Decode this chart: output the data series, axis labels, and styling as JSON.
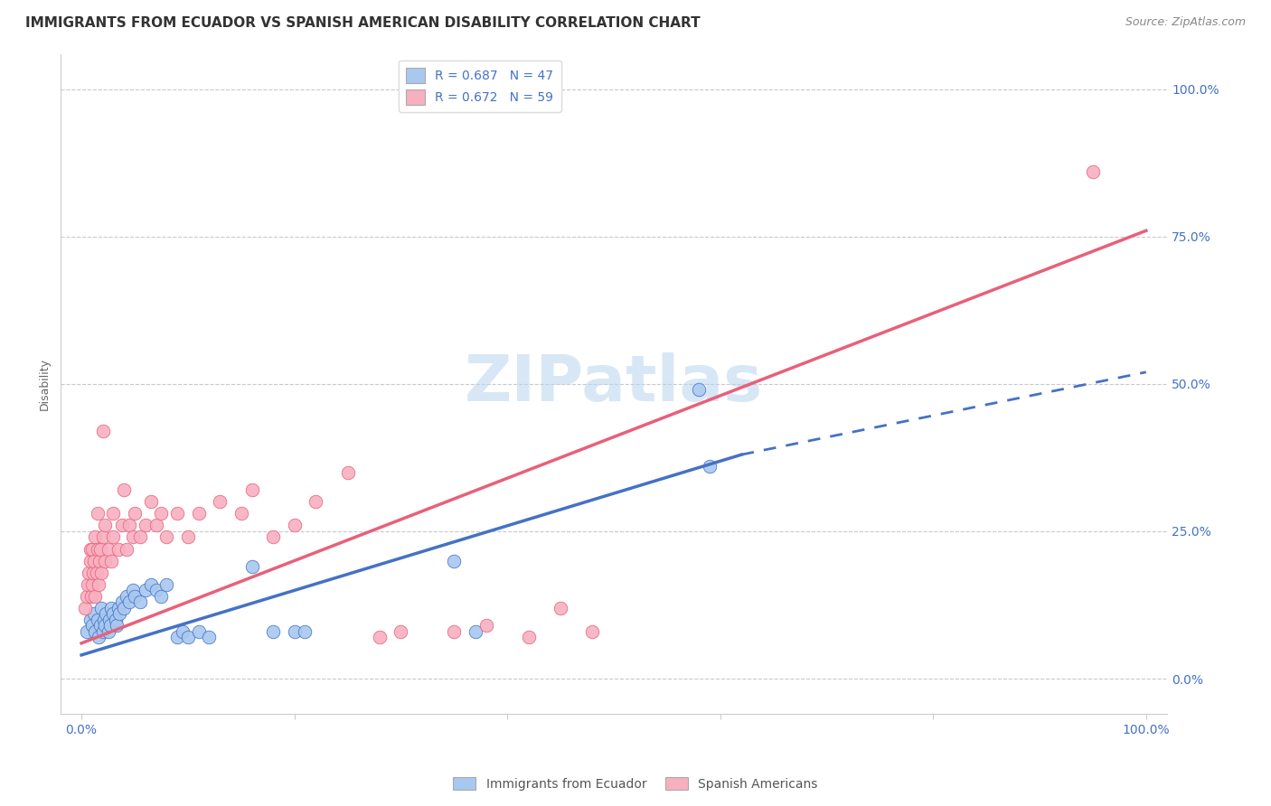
{
  "title": "IMMIGRANTS FROM ECUADOR VS SPANISH AMERICAN DISABILITY CORRELATION CHART",
  "source": "Source: ZipAtlas.com",
  "ylabel": "Disability",
  "y_tick_labels": [
    "0.0%",
    "25.0%",
    "50.0%",
    "75.0%",
    "100.0%"
  ],
  "y_tick_positions": [
    0.0,
    0.25,
    0.5,
    0.75,
    1.0
  ],
  "xlim": [
    -0.02,
    1.02
  ],
  "ylim": [
    -0.06,
    1.06
  ],
  "blue_color": "#4472c4",
  "pink_color": "#e8607a",
  "blue_scatter_color": "#a8c8f0",
  "pink_scatter_color": "#f8b0c0",
  "blue_line": {
    "x0": 0.0,
    "y0": 0.04,
    "x1": 0.62,
    "y1": 0.38
  },
  "blue_dashed_line": {
    "x0": 0.62,
    "y0": 0.38,
    "x1": 1.0,
    "y1": 0.52
  },
  "pink_line": {
    "x0": 0.0,
    "y0": 0.06,
    "x1": 1.0,
    "y1": 0.76
  },
  "legend_label_blue": "R = 0.687   N = 47",
  "legend_label_pink": "R = 0.672   N = 59",
  "legend_label_ecuador": "Immigrants from Ecuador",
  "legend_label_spanish": "Spanish Americans",
  "watermark": "ZIPatlas",
  "blue_points": [
    [
      0.005,
      0.08
    ],
    [
      0.008,
      0.1
    ],
    [
      0.01,
      0.09
    ],
    [
      0.012,
      0.11
    ],
    [
      0.013,
      0.08
    ],
    [
      0.015,
      0.1
    ],
    [
      0.016,
      0.07
    ],
    [
      0.018,
      0.09
    ],
    [
      0.019,
      0.12
    ],
    [
      0.02,
      0.08
    ],
    [
      0.021,
      0.1
    ],
    [
      0.022,
      0.09
    ],
    [
      0.023,
      0.11
    ],
    [
      0.025,
      0.08
    ],
    [
      0.026,
      0.1
    ],
    [
      0.027,
      0.09
    ],
    [
      0.028,
      0.12
    ],
    [
      0.03,
      0.11
    ],
    [
      0.032,
      0.1
    ],
    [
      0.033,
      0.09
    ],
    [
      0.035,
      0.12
    ],
    [
      0.036,
      0.11
    ],
    [
      0.038,
      0.13
    ],
    [
      0.04,
      0.12
    ],
    [
      0.042,
      0.14
    ],
    [
      0.045,
      0.13
    ],
    [
      0.048,
      0.15
    ],
    [
      0.05,
      0.14
    ],
    [
      0.055,
      0.13
    ],
    [
      0.06,
      0.15
    ],
    [
      0.065,
      0.16
    ],
    [
      0.07,
      0.15
    ],
    [
      0.075,
      0.14
    ],
    [
      0.08,
      0.16
    ],
    [
      0.09,
      0.07
    ],
    [
      0.095,
      0.08
    ],
    [
      0.1,
      0.07
    ],
    [
      0.11,
      0.08
    ],
    [
      0.12,
      0.07
    ],
    [
      0.16,
      0.19
    ],
    [
      0.18,
      0.08
    ],
    [
      0.2,
      0.08
    ],
    [
      0.21,
      0.08
    ],
    [
      0.35,
      0.2
    ],
    [
      0.37,
      0.08
    ],
    [
      0.58,
      0.49
    ],
    [
      0.59,
      0.36
    ]
  ],
  "pink_points": [
    [
      0.003,
      0.12
    ],
    [
      0.005,
      0.14
    ],
    [
      0.006,
      0.16
    ],
    [
      0.007,
      0.18
    ],
    [
      0.008,
      0.2
    ],
    [
      0.008,
      0.22
    ],
    [
      0.009,
      0.14
    ],
    [
      0.01,
      0.16
    ],
    [
      0.01,
      0.22
    ],
    [
      0.011,
      0.18
    ],
    [
      0.012,
      0.2
    ],
    [
      0.013,
      0.14
    ],
    [
      0.013,
      0.24
    ],
    [
      0.014,
      0.18
    ],
    [
      0.015,
      0.22
    ],
    [
      0.015,
      0.28
    ],
    [
      0.016,
      0.16
    ],
    [
      0.017,
      0.2
    ],
    [
      0.018,
      0.22
    ],
    [
      0.019,
      0.18
    ],
    [
      0.02,
      0.24
    ],
    [
      0.02,
      0.42
    ],
    [
      0.022,
      0.2
    ],
    [
      0.022,
      0.26
    ],
    [
      0.025,
      0.22
    ],
    [
      0.028,
      0.2
    ],
    [
      0.03,
      0.24
    ],
    [
      0.03,
      0.28
    ],
    [
      0.035,
      0.22
    ],
    [
      0.038,
      0.26
    ],
    [
      0.04,
      0.32
    ],
    [
      0.042,
      0.22
    ],
    [
      0.045,
      0.26
    ],
    [
      0.048,
      0.24
    ],
    [
      0.05,
      0.28
    ],
    [
      0.055,
      0.24
    ],
    [
      0.06,
      0.26
    ],
    [
      0.065,
      0.3
    ],
    [
      0.07,
      0.26
    ],
    [
      0.075,
      0.28
    ],
    [
      0.08,
      0.24
    ],
    [
      0.09,
      0.28
    ],
    [
      0.1,
      0.24
    ],
    [
      0.11,
      0.28
    ],
    [
      0.13,
      0.3
    ],
    [
      0.15,
      0.28
    ],
    [
      0.16,
      0.32
    ],
    [
      0.18,
      0.24
    ],
    [
      0.2,
      0.26
    ],
    [
      0.22,
      0.3
    ],
    [
      0.25,
      0.35
    ],
    [
      0.28,
      0.07
    ],
    [
      0.3,
      0.08
    ],
    [
      0.35,
      0.08
    ],
    [
      0.38,
      0.09
    ],
    [
      0.42,
      0.07
    ],
    [
      0.45,
      0.12
    ],
    [
      0.48,
      0.08
    ],
    [
      0.95,
      0.86
    ]
  ],
  "title_fontsize": 11,
  "source_fontsize": 9,
  "axis_label_fontsize": 9,
  "tick_fontsize": 10,
  "legend_fontsize": 10,
  "watermark_fontsize": 52
}
